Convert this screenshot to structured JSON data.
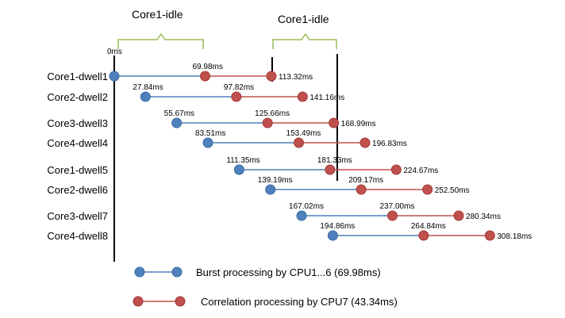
{
  "colors": {
    "burst": "#4f81bd",
    "burst_edge": "#3a6aa5",
    "correlation": "#c0504d",
    "correlation_edge": "#a13a37",
    "brace": "#9bbb59",
    "axis": "#000000"
  },
  "idle_labels": [
    "Core1-idle",
    "Core1-idle"
  ],
  "zero_label": "0ms",
  "rows": [
    {
      "label": "Core1-dwell1",
      "start": "",
      "mid": "69.98ms",
      "end": "113.32ms"
    },
    {
      "label": "Core2-dwell2",
      "start": "27.84ms",
      "mid": "97.82ms",
      "end": "141.16ms"
    },
    {
      "label": "Core3-dwell3",
      "start": "55.67ms",
      "mid": "125.66ms",
      "end": "168.99ms"
    },
    {
      "label": "Core4-dwell4",
      "start": "83.51ms",
      "mid": "153.49ms",
      "end": "196.83ms"
    },
    {
      "label": "Core1-dwell5",
      "start": "111.35ms",
      "mid": "181.33ms",
      "end": "224.67ms"
    },
    {
      "label": "Core2-dwell6",
      "start": "139.19ms",
      "mid": "209.17ms",
      "end": "252.50ms"
    },
    {
      "label": "Core3-dwell7",
      "start": "167.02ms",
      "mid": "237.00ms",
      "end": "280.34ms"
    },
    {
      "label": "Core4-dwell8",
      "start": "194.86ms",
      "mid": "264.84ms",
      "end": "308.18ms"
    }
  ],
  "legend": {
    "burst": "Burst processing by CPU1...6 (69.98ms)",
    "correlation": "Correlation processing by CPU7 (43.34ms)"
  }
}
